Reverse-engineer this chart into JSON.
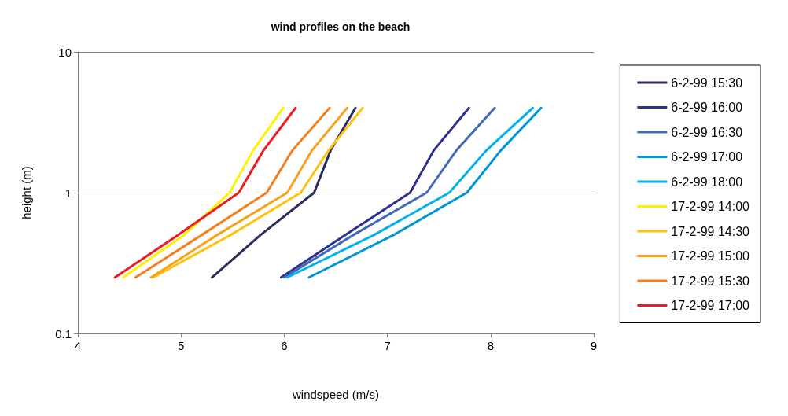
{
  "chart_data": {
    "type": "line",
    "title": "wind profiles on the beach",
    "xlabel": "windspeed (m/s)",
    "ylabel": "height (m)",
    "log": "y",
    "xlim": [
      4,
      9
    ],
    "xticks": [
      4,
      5,
      6,
      7,
      8,
      9
    ],
    "ylim": [
      0.1,
      10
    ],
    "yticks": [
      0.1,
      1,
      10
    ],
    "grid": "y",
    "legend": "right",
    "marker": "none",
    "line_style": "solid",
    "series": [
      {
        "name": "6-2-99 15:30",
        "color": "#2b2d5c",
        "x": [
          5.3,
          5.77,
          6.29,
          6.45,
          6.69
        ],
        "values": [
          0.25,
          0.5,
          1,
          2,
          4
        ]
      },
      {
        "name": "6-2-99 16:00",
        "color": "#2e3192",
        "x": [
          5.97,
          6.59,
          7.22,
          7.45,
          7.79
        ],
        "values": [
          0.25,
          0.5,
          1,
          2,
          4
        ]
      },
      {
        "name": "6-2-99 16:30",
        "color": "#4169b4",
        "x": [
          6.0,
          6.67,
          7.38,
          7.67,
          8.04
        ],
        "values": [
          0.25,
          0.5,
          1,
          2,
          4
        ]
      },
      {
        "name": "6-2-99 17:00",
        "color": "#0096d6",
        "x": [
          6.24,
          7.06,
          7.77,
          8.1,
          8.49
        ],
        "values": [
          0.25,
          0.5,
          1,
          2,
          4
        ]
      },
      {
        "name": "6-2-99 18:00",
        "color": "#00b0f0",
        "x": [
          6.03,
          6.87,
          7.6,
          7.96,
          8.41
        ],
        "values": [
          0.25,
          0.5,
          1,
          2,
          4
        ]
      },
      {
        "name": "17-2-99 14:00",
        "color": "#fff200",
        "x": [
          4.44,
          5.03,
          5.47,
          5.7,
          5.99
        ],
        "values": [
          0.25,
          0.5,
          1,
          2,
          4
        ]
      },
      {
        "name": "17-2-99 14:30",
        "color": "#ffc20e",
        "x": [
          4.73,
          5.48,
          6.16,
          6.43,
          6.76
        ],
        "values": [
          0.25,
          0.5,
          1,
          2,
          4
        ]
      },
      {
        "name": "17-2-99 15:00",
        "color": "#f7a21b",
        "x": [
          4.71,
          5.35,
          6.03,
          6.27,
          6.61
        ],
        "values": [
          0.25,
          0.5,
          1,
          2,
          4
        ]
      },
      {
        "name": "17-2-99 15:30",
        "color": "#f47f20",
        "x": [
          4.56,
          5.2,
          5.83,
          6.08,
          6.44
        ],
        "values": [
          0.25,
          0.5,
          1,
          2,
          4
        ]
      },
      {
        "name": "17-2-99 17:00",
        "color": "#ed1c24",
        "x": [
          4.36,
          4.97,
          5.56,
          5.8,
          6.11
        ],
        "values": [
          0.25,
          0.5,
          1,
          2,
          4
        ]
      }
    ]
  }
}
